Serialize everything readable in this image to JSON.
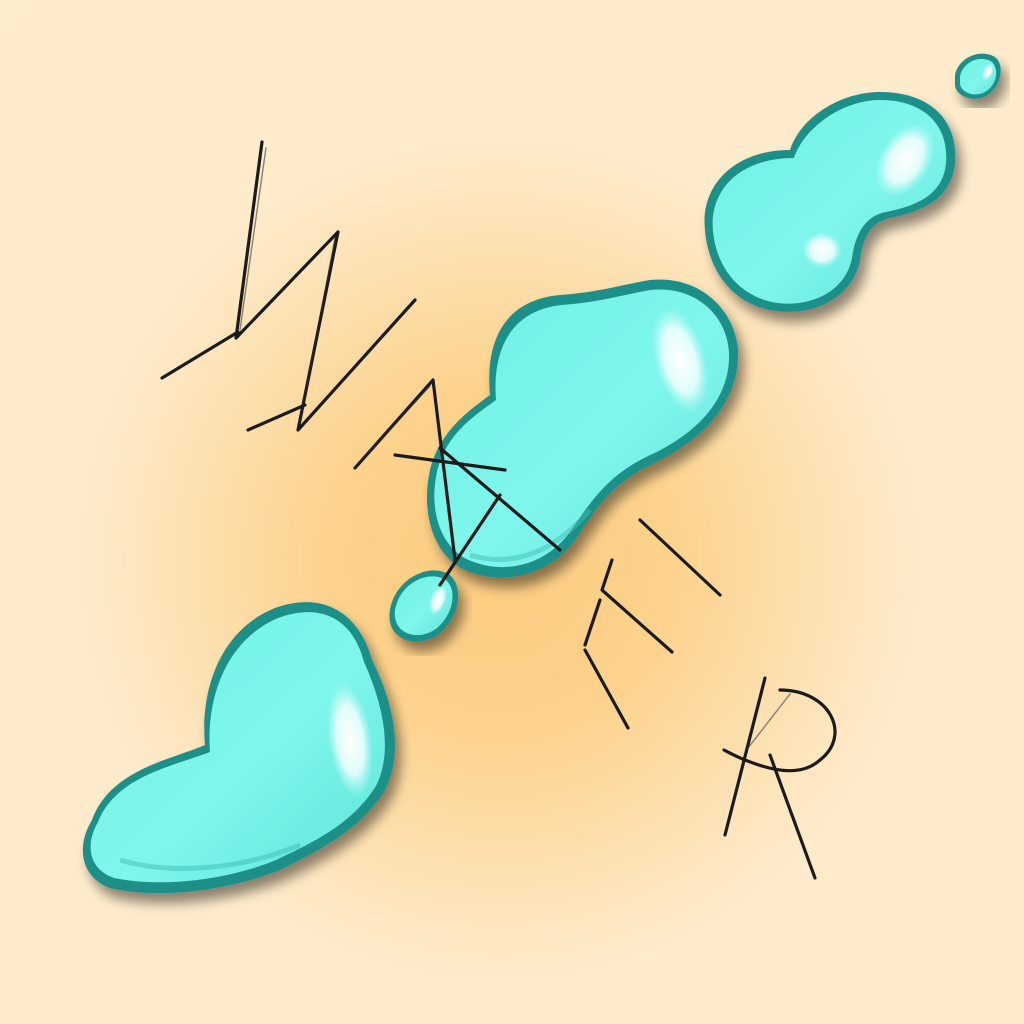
{
  "artwork": {
    "title_word": "WATER",
    "letters": [
      "W",
      "A",
      "T",
      "E",
      "R"
    ]
  },
  "colors": {
    "background_light": "#fdeccd",
    "background_glow": "#fbcc80",
    "water_fill": "#7ff6ec",
    "water_edge": "#1f8f88",
    "ink": "#1b1b1b"
  },
  "icons": {
    "puddles": [
      "large-puddle-icon",
      "middle-puddle-icon",
      "upper-puddle-icon"
    ],
    "droplets": [
      "small-droplet-icon",
      "tiny-droplet-icon"
    ]
  }
}
